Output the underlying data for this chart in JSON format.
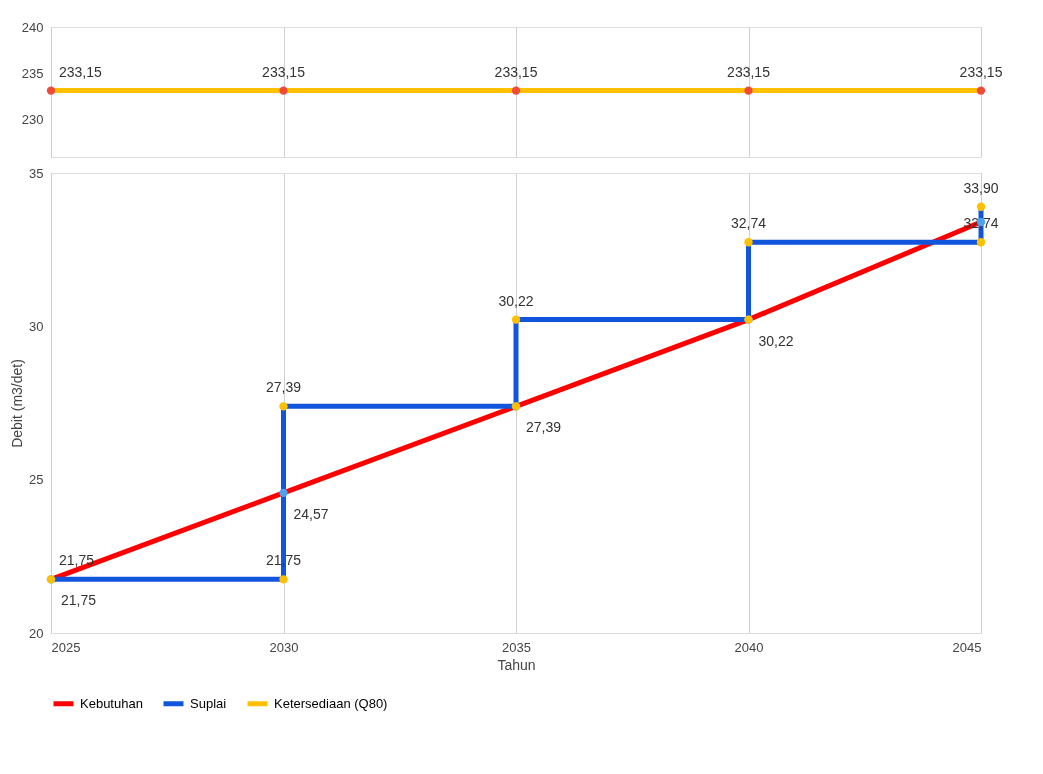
{
  "chart_data": [
    {
      "type": "line",
      "x": [
        2025,
        2030,
        2035,
        2040,
        2045
      ],
      "xlim": [
        2025,
        2045
      ],
      "xticks": [
        2025,
        2030,
        2035,
        2040,
        2045
      ],
      "ylim": [
        226,
        240
      ],
      "yticks": [
        230,
        235,
        240
      ],
      "grid": "x",
      "tick_labels": "y",
      "marker": "circle",
      "legend": "bottom",
      "series": [
        {
          "name": "Ketersediaan (Q80)",
          "color": "#ffc000",
          "colors": [
            "#f04a3a",
            "#f04a3a",
            "#f04a3a",
            "#f04a3a",
            "#f04a3a"
          ],
          "values": [
            233.15,
            233.15,
            233.15,
            233.15,
            233.15
          ],
          "value_labels": [
            "233,15",
            "233,15",
            "233,15",
            "233,15",
            "233,15"
          ]
        }
      ]
    },
    {
      "type": "line",
      "xlabel": "Tahun",
      "ylabel": "Debit (m3/det)",
      "xlim": [
        2025,
        2045
      ],
      "xticks": [
        2025,
        2030,
        2035,
        2040,
        2045
      ],
      "ylim": [
        20,
        35
      ],
      "yticks": [
        20,
        25,
        30,
        35
      ],
      "grid": "x",
      "marker": "circle",
      "legend": "bottom",
      "series": [
        {
          "name": "Kebutuhan",
          "color": "#ff0000",
          "colors": [
            "#4da3f0",
            "#4da3f0",
            "#4da3f0",
            "#4da3f0",
            "#4da3f0"
          ],
          "x": [
            2025,
            2030,
            2035,
            2040,
            2045
          ],
          "values": [
            21.75,
            24.57,
            27.39,
            30.22,
            33.4
          ],
          "value_labels": [
            "21,75",
            "24,57",
            "27,39",
            "30,22",
            null
          ]
        },
        {
          "name": "Suplai",
          "color": "#1155dd",
          "colors": [
            "#ffc000",
            "#ffc000",
            "#ffc000",
            "#ffc000",
            "#ffc000",
            "#ffc000",
            "#ffc000",
            "#ffc000",
            "#ffc000"
          ],
          "x": [
            2025,
            2030,
            2030,
            2035,
            2035,
            2040,
            2040,
            2045,
            2045
          ],
          "values": [
            21.75,
            21.75,
            27.39,
            27.39,
            30.22,
            30.22,
            32.74,
            32.74,
            33.9
          ],
          "value_labels": [
            "21,75",
            "21,75",
            "27,39",
            null,
            "30,22",
            null,
            "32,74",
            "32,74",
            "33,90"
          ]
        }
      ]
    }
  ]
}
